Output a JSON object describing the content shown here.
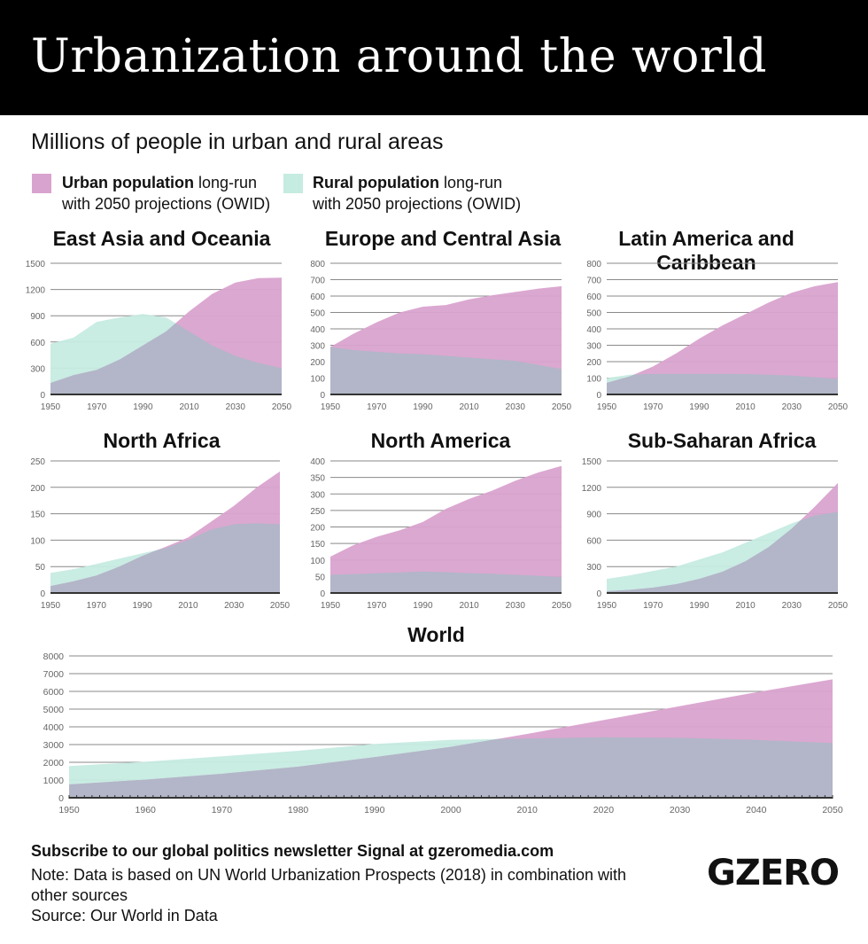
{
  "title": "Urbanization around the world",
  "subtitle": "Millions of people in urban and rural areas",
  "colors": {
    "urban": "#d9a3cf",
    "rural": "#c6ebe1",
    "overlap": "#b2b6c8"
  },
  "legend": [
    {
      "bold": "Urban population",
      "rest": " long-run",
      "line2": "with 2050 projections (OWID)",
      "color": "#d9a3cf"
    },
    {
      "bold": "Rural population",
      "rest": " long-run",
      "line2": "with 2050 projections (OWID)",
      "color": "#c6ebe1"
    }
  ],
  "chart_data": [
    {
      "type": "area",
      "title": "East Asia and Oceania",
      "x": [
        1950,
        1960,
        1970,
        1980,
        1990,
        2000,
        2010,
        2020,
        2030,
        2040,
        2050
      ],
      "xticks": [
        1950,
        1970,
        1990,
        2010,
        2030,
        2050
      ],
      "ylim": [
        0,
        1500
      ],
      "yticks": [
        0,
        300,
        600,
        900,
        1200,
        1500
      ],
      "series": [
        {
          "name": "Urban population",
          "values": [
            130,
            220,
            280,
            400,
            560,
            720,
            950,
            1150,
            1280,
            1330,
            1335
          ]
        },
        {
          "name": "Rural population",
          "values": [
            580,
            650,
            830,
            880,
            920,
            880,
            720,
            560,
            440,
            360,
            300
          ]
        }
      ]
    },
    {
      "type": "area",
      "title": "Europe and Central Asia",
      "x": [
        1950,
        1960,
        1970,
        1980,
        1990,
        2000,
        2010,
        2020,
        2030,
        2040,
        2050
      ],
      "xticks": [
        1950,
        1970,
        1990,
        2010,
        2030,
        2050
      ],
      "ylim": [
        0,
        800
      ],
      "yticks": [
        0,
        100,
        200,
        300,
        400,
        500,
        600,
        700,
        800
      ],
      "series": [
        {
          "name": "Urban population",
          "values": [
            290,
            370,
            440,
            500,
            535,
            545,
            580,
            605,
            625,
            645,
            660
          ]
        },
        {
          "name": "Rural population",
          "values": [
            290,
            270,
            260,
            250,
            245,
            235,
            225,
            215,
            205,
            180,
            155
          ]
        }
      ]
    },
    {
      "type": "area",
      "title": "Latin America and Caribbean",
      "x": [
        1950,
        1960,
        1970,
        1980,
        1990,
        2000,
        2010,
        2020,
        2030,
        2040,
        2050
      ],
      "xticks": [
        1950,
        1970,
        1990,
        2010,
        2030,
        2050
      ],
      "ylim": [
        0,
        800
      ],
      "yticks": [
        0,
        100,
        200,
        300,
        400,
        500,
        600,
        700,
        800
      ],
      "series": [
        {
          "name": "Urban population",
          "values": [
            70,
            110,
            170,
            250,
            340,
            420,
            490,
            560,
            620,
            660,
            685
          ]
        },
        {
          "name": "Rural population",
          "values": [
            100,
            120,
            125,
            125,
            125,
            125,
            125,
            120,
            115,
            105,
            95
          ]
        }
      ]
    },
    {
      "type": "area",
      "title": "North Africa",
      "x": [
        1950,
        1960,
        1970,
        1980,
        1990,
        2000,
        2010,
        2020,
        2030,
        2040,
        2050
      ],
      "xticks": [
        1950,
        1970,
        1990,
        2010,
        2030,
        2050
      ],
      "ylim": [
        0,
        250
      ],
      "yticks": [
        0,
        50,
        100,
        150,
        200,
        250
      ],
      "series": [
        {
          "name": "Urban population",
          "values": [
            13,
            22,
            33,
            50,
            70,
            87,
            105,
            135,
            165,
            200,
            230
          ]
        },
        {
          "name": "Rural population",
          "values": [
            38,
            45,
            55,
            65,
            75,
            85,
            100,
            120,
            130,
            132,
            130
          ]
        }
      ]
    },
    {
      "type": "area",
      "title": "North America",
      "x": [
        1950,
        1960,
        1970,
        1980,
        1990,
        2000,
        2010,
        2020,
        2030,
        2040,
        2050
      ],
      "xticks": [
        1950,
        1970,
        1990,
        2010,
        2030,
        2050
      ],
      "ylim": [
        0,
        400
      ],
      "yticks": [
        0,
        50,
        100,
        150,
        200,
        250,
        300,
        350,
        400
      ],
      "series": [
        {
          "name": "Urban population",
          "values": [
            110,
            145,
            170,
            190,
            215,
            255,
            285,
            310,
            340,
            365,
            385
          ]
        },
        {
          "name": "Rural population",
          "values": [
            55,
            57,
            60,
            62,
            65,
            63,
            60,
            58,
            55,
            52,
            48
          ]
        }
      ]
    },
    {
      "type": "area",
      "title": "Sub-Saharan Africa",
      "x": [
        1950,
        1960,
        1970,
        1980,
        1990,
        2000,
        2010,
        2020,
        2030,
        2040,
        2050
      ],
      "xticks": [
        1950,
        1970,
        1990,
        2010,
        2030,
        2050
      ],
      "ylim": [
        0,
        1500
      ],
      "yticks": [
        0,
        300,
        600,
        900,
        1200,
        1500
      ],
      "series": [
        {
          "name": "Urban population",
          "values": [
            20,
            35,
            60,
            100,
            160,
            240,
            360,
            520,
            730,
            980,
            1250
          ]
        },
        {
          "name": "Rural population",
          "values": [
            160,
            200,
            250,
            300,
            380,
            460,
            570,
            680,
            790,
            880,
            920
          ]
        }
      ]
    },
    {
      "type": "area",
      "title": "World",
      "x": [
        1950,
        1960,
        1970,
        1980,
        1990,
        2000,
        2010,
        2020,
        2030,
        2040,
        2050
      ],
      "xticks": [
        1950,
        1960,
        1970,
        1980,
        1990,
        2000,
        2010,
        2020,
        2030,
        2040,
        2050
      ],
      "ylim": [
        0,
        8000
      ],
      "yticks": [
        0,
        1000,
        2000,
        3000,
        4000,
        5000,
        6000,
        7000,
        8000
      ],
      "series": [
        {
          "name": "Urban population",
          "values": [
            750,
            1020,
            1350,
            1750,
            2290,
            2870,
            3600,
            4380,
            5170,
            5950,
            6680
          ]
        },
        {
          "name": "Rural population",
          "values": [
            1790,
            2030,
            2340,
            2650,
            3030,
            3270,
            3340,
            3410,
            3380,
            3260,
            3090
          ]
        }
      ]
    }
  ],
  "footer": {
    "subscribe": "Subscribe to our global politics newsletter Signal at gzeromedia.com",
    "note_line1": "Note: Data is based on UN World Urbanization Prospects (2018) in combination with",
    "note_line2": "other sources",
    "source": "Source: Our World in Data",
    "logo": "GZERO"
  }
}
